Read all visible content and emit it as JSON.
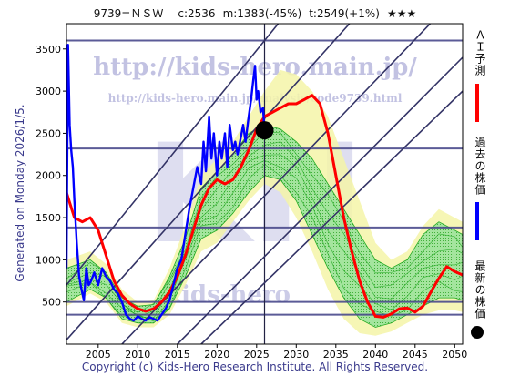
{
  "header": {
    "code": "9739=ＮＳＷ",
    "current": "c:2536",
    "minimum": "m:1383(-45%)",
    "target": "t:2549(+1%)",
    "stars": "★★★"
  },
  "footer": "Copyright (c) Kids-Hero Research Institute. All Rights Reserved.",
  "side_note": "Generated on Monday 2026/1/5.",
  "watermark": {
    "url": "http://kids-hero.main.jp/",
    "path": "http://kids-hero.main.jp/analysis/code9739.html",
    "big": "KH",
    "lower": "kids-hero"
  },
  "legend": [
    {
      "label": "ＡＩ予測",
      "color": "#ff0000"
    },
    {
      "label": "過去の株価",
      "color": "#0000ff"
    },
    {
      "label": "最新の株価",
      "color": "#000000"
    }
  ],
  "colors": {
    "ai_forecast": "#ff0000",
    "past_price": "#0000ff",
    "latest": "#000000",
    "band_outer": "#f5f5a8",
    "band_inner": "#9be39b",
    "band_lines": "#22aa22",
    "trend_lines": "#333366",
    "guide_lines": "#4a4a8c"
  },
  "chart_data": {
    "type": "line",
    "xlim": [
      2001,
      2051
    ],
    "ylim": [
      0,
      3800
    ],
    "x_ticks": [
      2005,
      2010,
      2015,
      2020,
      2025,
      2030,
      2035,
      2040,
      2045,
      2050
    ],
    "y_ticks": [
      500,
      1000,
      1500,
      2000,
      2500,
      3000,
      3500
    ],
    "horizontal_levels": [
      3600,
      2320,
      1383,
      500,
      350
    ],
    "latest_marker_year": 2026,
    "latest_point": {
      "year": 2026,
      "value": 2536
    },
    "series": [
      {
        "name": "過去の株価",
        "color": "#0000ff",
        "points": [
          [
            2001.0,
            900
          ],
          [
            2001.2,
            3550
          ],
          [
            2001.4,
            2600
          ],
          [
            2001.6,
            2300
          ],
          [
            2001.8,
            2100
          ],
          [
            2002.0,
            1700
          ],
          [
            2002.3,
            1200
          ],
          [
            2002.6,
            800
          ],
          [
            2002.9,
            650
          ],
          [
            2003.2,
            520
          ],
          [
            2003.5,
            900
          ],
          [
            2003.8,
            700
          ],
          [
            2004.1,
            750
          ],
          [
            2004.5,
            850
          ],
          [
            2005.0,
            700
          ],
          [
            2005.5,
            900
          ],
          [
            2006.0,
            800
          ],
          [
            2006.5,
            750
          ],
          [
            2007.0,
            650
          ],
          [
            2007.5,
            600
          ],
          [
            2008.0,
            500
          ],
          [
            2008.5,
            350
          ],
          [
            2009.0,
            300
          ],
          [
            2009.5,
            280
          ],
          [
            2010.0,
            330
          ],
          [
            2010.5,
            300
          ],
          [
            2011.0,
            280
          ],
          [
            2011.5,
            320
          ],
          [
            2012.0,
            300
          ],
          [
            2012.5,
            280
          ],
          [
            2013.0,
            350
          ],
          [
            2013.5,
            420
          ],
          [
            2014.0,
            520
          ],
          [
            2014.5,
            700
          ],
          [
            2015.0,
            900
          ],
          [
            2015.5,
            1000
          ],
          [
            2016.0,
            1300
          ],
          [
            2016.5,
            1600
          ],
          [
            2017.0,
            1850
          ],
          [
            2017.5,
            2100
          ],
          [
            2018.0,
            1900
          ],
          [
            2018.3,
            2400
          ],
          [
            2018.6,
            2050
          ],
          [
            2019.0,
            2700
          ],
          [
            2019.3,
            2200
          ],
          [
            2019.6,
            2500
          ],
          [
            2020.0,
            2000
          ],
          [
            2020.3,
            2400
          ],
          [
            2020.6,
            2200
          ],
          [
            2021.0,
            2500
          ],
          [
            2021.3,
            2100
          ],
          [
            2021.6,
            2600
          ],
          [
            2022.0,
            2300
          ],
          [
            2022.3,
            2400
          ],
          [
            2022.6,
            2250
          ],
          [
            2023.0,
            2450
          ],
          [
            2023.3,
            2600
          ],
          [
            2023.6,
            2400
          ],
          [
            2024.0,
            2700
          ],
          [
            2024.3,
            2900
          ],
          [
            2024.6,
            3150
          ],
          [
            2024.8,
            3300
          ],
          [
            2025.0,
            2900
          ],
          [
            2025.2,
            3000
          ],
          [
            2025.5,
            2750
          ],
          [
            2025.8,
            2800
          ],
          [
            2026.0,
            2536
          ]
        ]
      },
      {
        "name": "ＡＩ予測",
        "color": "#ff0000",
        "points": [
          [
            2001,
            1800
          ],
          [
            2002,
            1500
          ],
          [
            2003,
            1450
          ],
          [
            2004,
            1500
          ],
          [
            2005,
            1350
          ],
          [
            2006,
            1050
          ],
          [
            2007,
            750
          ],
          [
            2008,
            580
          ],
          [
            2009,
            480
          ],
          [
            2010,
            420
          ],
          [
            2011,
            390
          ],
          [
            2012,
            420
          ],
          [
            2013,
            500
          ],
          [
            2014,
            620
          ],
          [
            2015,
            800
          ],
          [
            2016,
            1050
          ],
          [
            2017,
            1350
          ],
          [
            2018,
            1650
          ],
          [
            2019,
            1850
          ],
          [
            2020,
            1950
          ],
          [
            2021,
            1900
          ],
          [
            2022,
            1950
          ],
          [
            2023,
            2100
          ],
          [
            2024,
            2300
          ],
          [
            2025,
            2550
          ],
          [
            2026,
            2700
          ],
          [
            2027,
            2750
          ],
          [
            2028,
            2800
          ],
          [
            2029,
            2850
          ],
          [
            2030,
            2850
          ],
          [
            2031,
            2900
          ],
          [
            2032,
            2950
          ],
          [
            2033,
            2850
          ],
          [
            2034,
            2500
          ],
          [
            2035,
            2000
          ],
          [
            2036,
            1500
          ],
          [
            2037,
            1100
          ],
          [
            2038,
            750
          ],
          [
            2039,
            500
          ],
          [
            2040,
            330
          ],
          [
            2041,
            320
          ],
          [
            2042,
            360
          ],
          [
            2043,
            420
          ],
          [
            2044,
            430
          ],
          [
            2045,
            380
          ],
          [
            2046,
            450
          ],
          [
            2047,
            620
          ],
          [
            2048,
            780
          ],
          [
            2049,
            920
          ],
          [
            2050,
            860
          ],
          [
            2051,
            820
          ]
        ]
      }
    ],
    "bands": {
      "outer_upper": [
        [
          2001,
          1000
        ],
        [
          2004,
          1100
        ],
        [
          2006,
          950
        ],
        [
          2008,
          650
        ],
        [
          2010,
          500
        ],
        [
          2012,
          520
        ],
        [
          2014,
          900
        ],
        [
          2016,
          1400
        ],
        [
          2018,
          2000
        ],
        [
          2020,
          2200
        ],
        [
          2022,
          2400
        ],
        [
          2024,
          2700
        ],
        [
          2026,
          3000
        ],
        [
          2028,
          3250
        ],
        [
          2030,
          3200
        ],
        [
          2032,
          3000
        ],
        [
          2034,
          2700
        ],
        [
          2036,
          2200
        ],
        [
          2038,
          1700
        ],
        [
          2040,
          1200
        ],
        [
          2042,
          1000
        ],
        [
          2044,
          1100
        ],
        [
          2046,
          1400
        ],
        [
          2048,
          1600
        ],
        [
          2050,
          1500
        ],
        [
          2051,
          1450
        ]
      ],
      "outer_lower": [
        [
          2001,
          450
        ],
        [
          2004,
          600
        ],
        [
          2006,
          500
        ],
        [
          2008,
          250
        ],
        [
          2010,
          200
        ],
        [
          2012,
          200
        ],
        [
          2014,
          350
        ],
        [
          2016,
          700
        ],
        [
          2018,
          1100
        ],
        [
          2020,
          1200
        ],
        [
          2022,
          1450
        ],
        [
          2024,
          1700
        ],
        [
          2026,
          1900
        ],
        [
          2028,
          1800
        ],
        [
          2030,
          1500
        ],
        [
          2032,
          1100
        ],
        [
          2034,
          650
        ],
        [
          2036,
          300
        ],
        [
          2038,
          130
        ],
        [
          2040,
          100
        ],
        [
          2042,
          150
        ],
        [
          2044,
          250
        ],
        [
          2046,
          350
        ],
        [
          2048,
          400
        ],
        [
          2050,
          400
        ],
        [
          2051,
          380
        ]
      ],
      "inner_upper": [
        [
          2001,
          900
        ],
        [
          2004,
          1000
        ],
        [
          2006,
          850
        ],
        [
          2008,
          550
        ],
        [
          2010,
          450
        ],
        [
          2012,
          470
        ],
        [
          2014,
          800
        ],
        [
          2016,
          1250
        ],
        [
          2018,
          1850
        ],
        [
          2020,
          2050
        ],
        [
          2022,
          2250
        ],
        [
          2024,
          2500
        ],
        [
          2026,
          2600
        ],
        [
          2028,
          2550
        ],
        [
          2030,
          2400
        ],
        [
          2032,
          2200
        ],
        [
          2034,
          1900
        ],
        [
          2036,
          1600
        ],
        [
          2038,
          1300
        ],
        [
          2040,
          1000
        ],
        [
          2042,
          900
        ],
        [
          2044,
          1000
        ],
        [
          2046,
          1300
        ],
        [
          2048,
          1450
        ],
        [
          2050,
          1350
        ],
        [
          2051,
          1300
        ]
      ],
      "inner_lower": [
        [
          2001,
          500
        ],
        [
          2004,
          650
        ],
        [
          2006,
          550
        ],
        [
          2008,
          300
        ],
        [
          2010,
          250
        ],
        [
          2012,
          250
        ],
        [
          2014,
          420
        ],
        [
          2016,
          800
        ],
        [
          2018,
          1250
        ],
        [
          2020,
          1350
        ],
        [
          2022,
          1550
        ],
        [
          2024,
          1800
        ],
        [
          2026,
          2000
        ],
        [
          2028,
          1950
        ],
        [
          2030,
          1700
        ],
        [
          2032,
          1300
        ],
        [
          2034,
          900
        ],
        [
          2036,
          550
        ],
        [
          2038,
          300
        ],
        [
          2040,
          200
        ],
        [
          2042,
          250
        ],
        [
          2044,
          350
        ],
        [
          2046,
          450
        ],
        [
          2048,
          550
        ],
        [
          2050,
          550
        ],
        [
          2051,
          520
        ]
      ]
    },
    "trend_lines": [
      {
        "from": [
          2001,
          700
        ],
        "to": [
          2051,
          6500
        ]
      },
      {
        "from": [
          2001,
          50
        ],
        "to": [
          2051,
          5300
        ]
      },
      {
        "from": [
          2008,
          0
        ],
        "to": [
          2051,
          4200
        ]
      },
      {
        "from": [
          2015,
          0
        ],
        "to": [
          2051,
          3400
        ]
      },
      {
        "from": [
          2018,
          0
        ],
        "to": [
          2051,
          3000
        ]
      }
    ]
  }
}
